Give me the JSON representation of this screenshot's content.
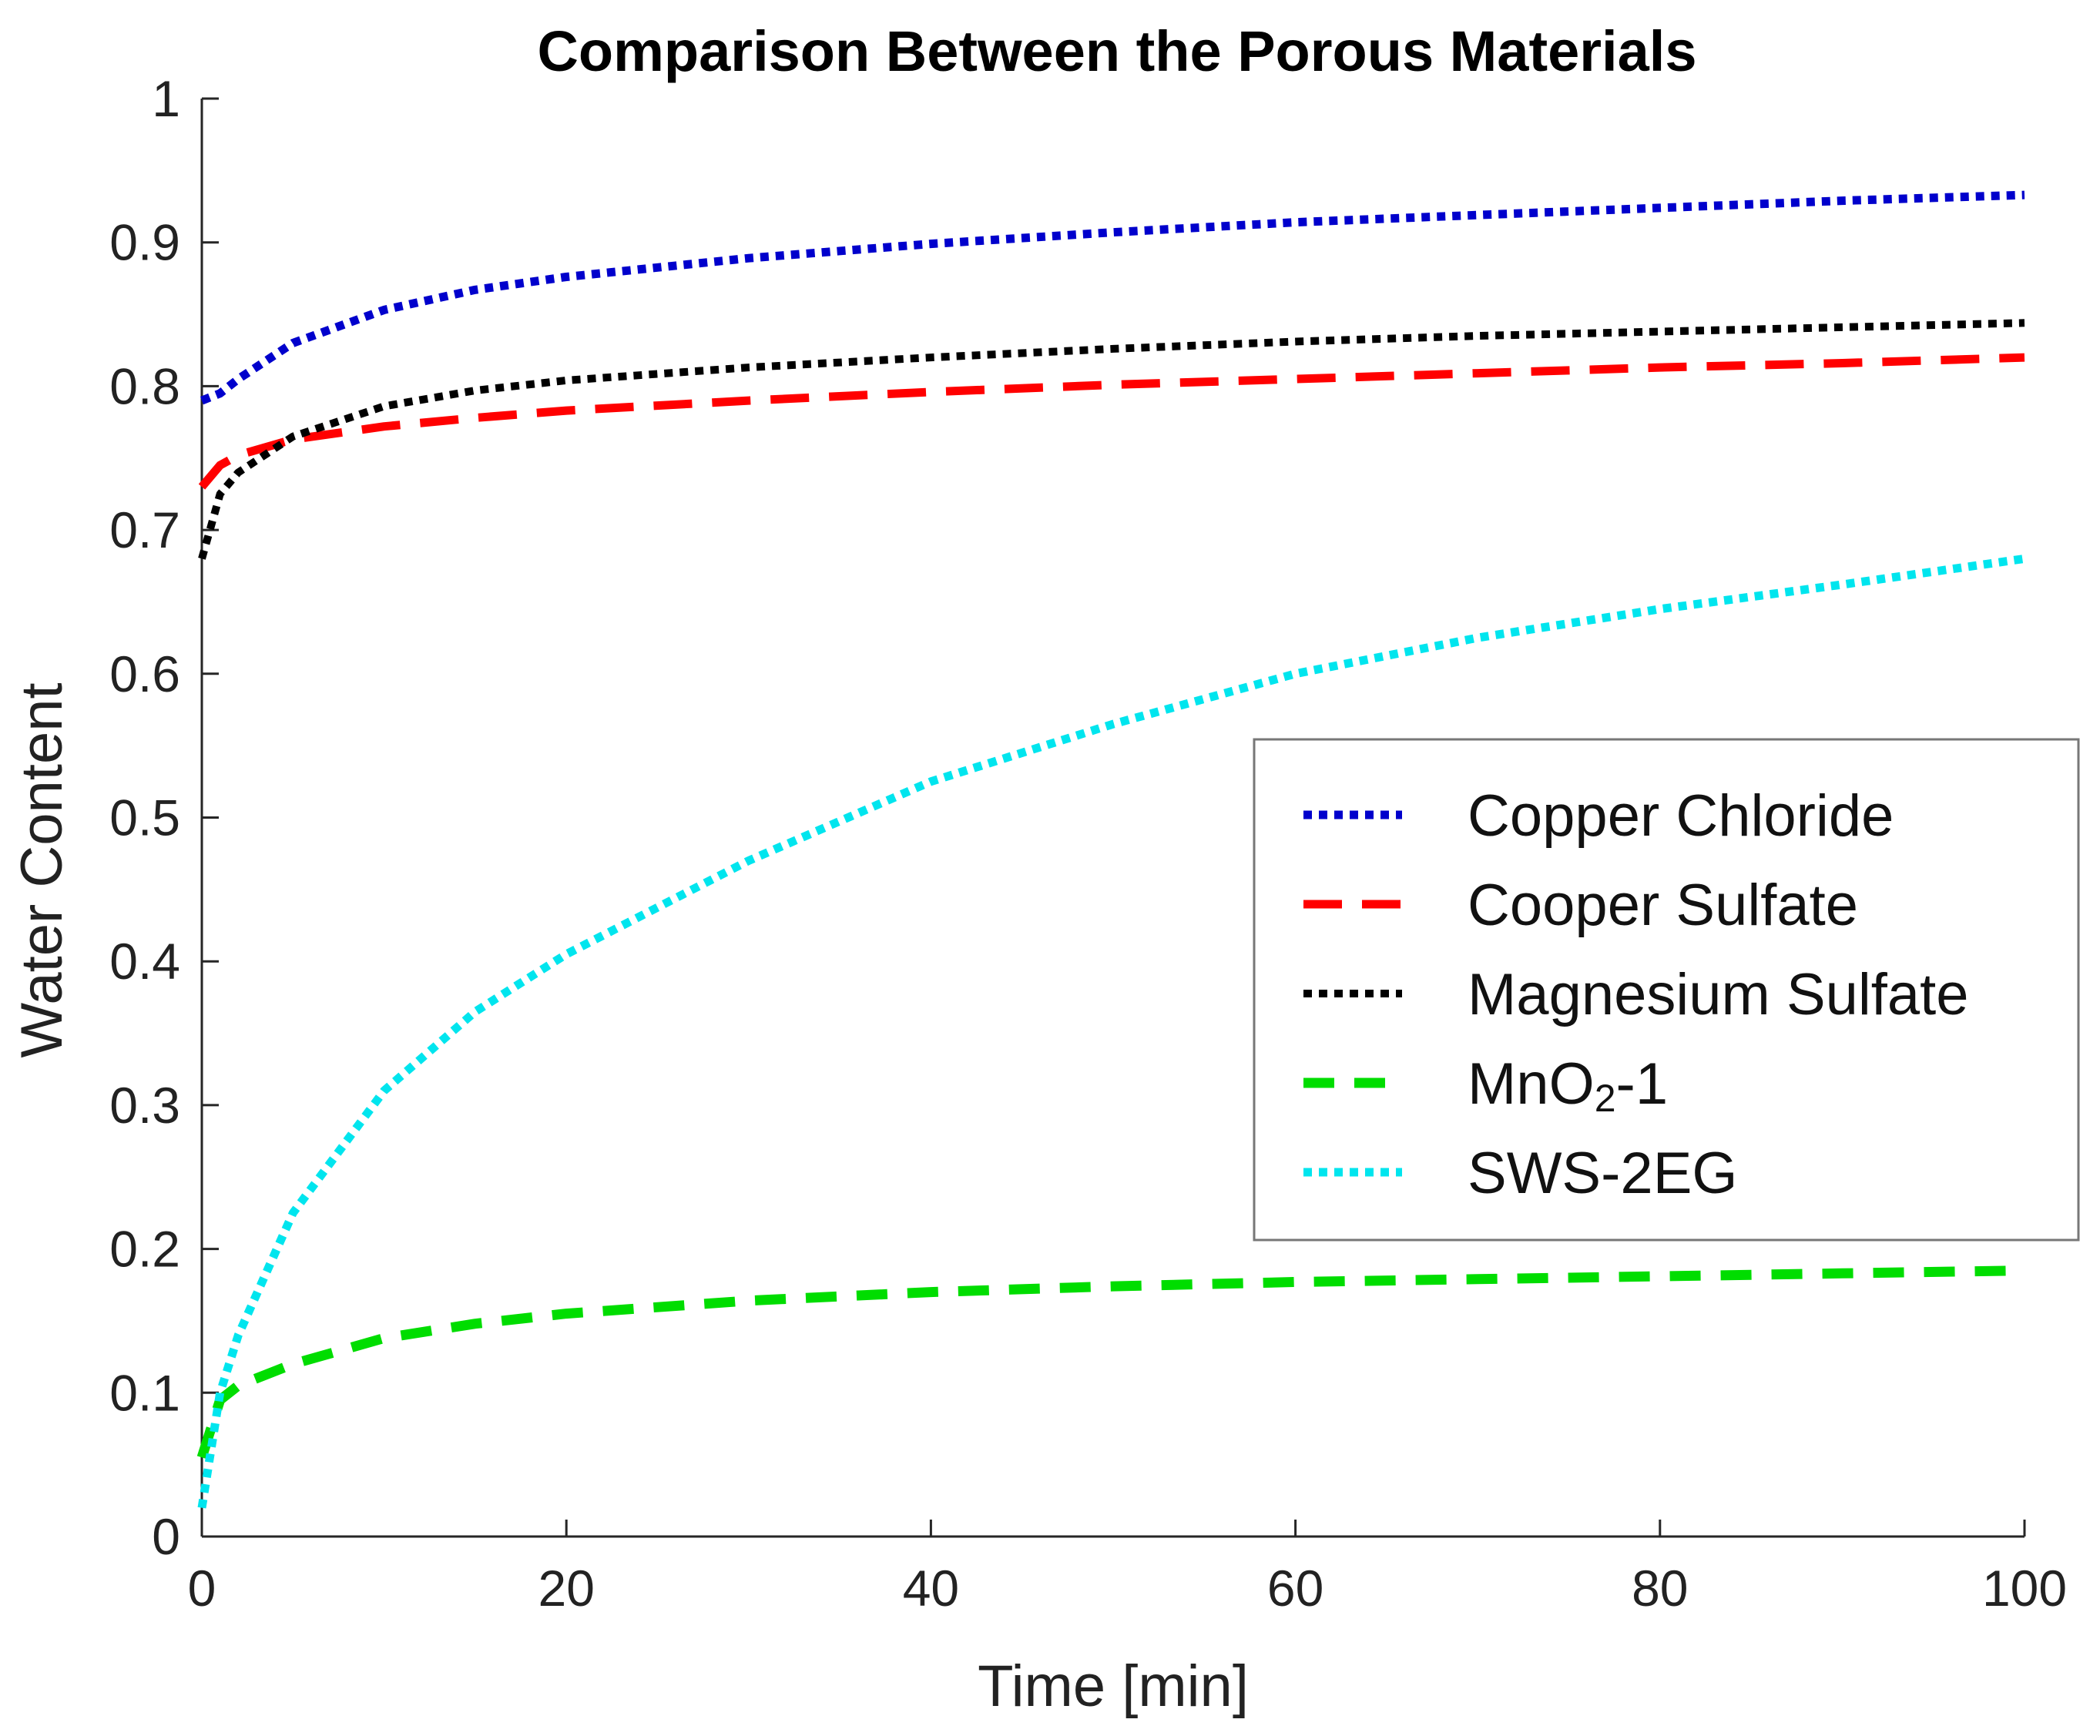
{
  "chart_data": {
    "type": "line",
    "title": "Comparison Between the Porous Materials",
    "xlabel": "Time [min]",
    "ylabel": "Water Content",
    "xlim": [
      0,
      100
    ],
    "ylim": [
      0,
      1
    ],
    "xticks": [
      0,
      20,
      40,
      60,
      80,
      100
    ],
    "xtick_labels": [
      "0",
      "20",
      "40",
      "60",
      "80",
      "100"
    ],
    "yticks": [
      0,
      0.1,
      0.2,
      0.3,
      0.4,
      0.5,
      0.6,
      0.7,
      0.8,
      0.9,
      1
    ],
    "ytick_labels": [
      "0",
      "0.1",
      "0.2",
      "0.3",
      "0.4",
      "0.5",
      "0.6",
      "0.7",
      "0.8",
      "0.9",
      "1"
    ],
    "grid": false,
    "legend_position": "center-right",
    "x": [
      0,
      1,
      2,
      5,
      10,
      15,
      20,
      30,
      40,
      50,
      60,
      70,
      80,
      90,
      100
    ],
    "series": [
      {
        "name": "Copper Chloride",
        "legend_label": "Copper Chloride",
        "color": "#0000cc",
        "style": "dotted",
        "values": [
          0.79,
          0.795,
          0.805,
          0.83,
          0.853,
          0.867,
          0.876,
          0.889,
          0.899,
          0.907,
          0.914,
          0.919,
          0.924,
          0.929,
          0.933
        ]
      },
      {
        "name": "Cooper Sulfate",
        "legend_label": "Cooper Sulfate",
        "color": "#ff0000",
        "style": "dashed",
        "values": [
          0.73,
          0.745,
          0.752,
          0.763,
          0.772,
          0.778,
          0.783,
          0.79,
          0.796,
          0.801,
          0.805,
          0.809,
          0.813,
          0.816,
          0.82
        ]
      },
      {
        "name": "Magnesium Sulfate",
        "legend_label": "Magnesium Sulfate",
        "color": "#000000",
        "style": "dashdot",
        "values": [
          0.68,
          0.725,
          0.74,
          0.765,
          0.786,
          0.797,
          0.804,
          0.813,
          0.82,
          0.826,
          0.831,
          0.835,
          0.838,
          0.841,
          0.844
        ]
      },
      {
        "name": "MnO2-1",
        "legend_label": "MnO",
        "legend_label_sub": "2",
        "legend_label_suffix": "-1",
        "color": "#00dd00",
        "style": "longdash",
        "values": [
          0.055,
          0.095,
          0.105,
          0.12,
          0.138,
          0.148,
          0.155,
          0.164,
          0.17,
          0.174,
          0.177,
          0.179,
          0.181,
          0.183,
          0.185
        ]
      },
      {
        "name": "SWS-2EG",
        "legend_label": "SWS-2EG",
        "color": "#00e5ee",
        "style": "dotted",
        "values": [
          0.02,
          0.1,
          0.14,
          0.225,
          0.31,
          0.365,
          0.405,
          0.47,
          0.525,
          0.565,
          0.6,
          0.625,
          0.645,
          0.662,
          0.68
        ]
      }
    ]
  }
}
